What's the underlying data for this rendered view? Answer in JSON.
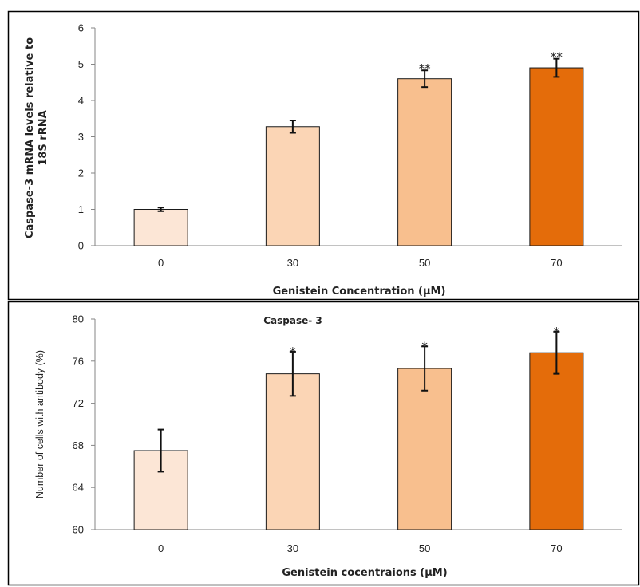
{
  "chart_data": [
    {
      "type": "bar",
      "title": "",
      "xlabel": "Genistein Concentration (µM)",
      "ylabel_lines": [
        "Caspase-3 mRNA levels relative to",
        "18S rRNA"
      ],
      "ylim": [
        0,
        6
      ],
      "yticks": [
        "0",
        "1",
        "2",
        "3",
        "4",
        "5",
        "6"
      ],
      "categories": [
        "0",
        "30",
        "50",
        "70"
      ],
      "values": [
        1.0,
        3.28,
        4.6,
        4.9
      ],
      "errors": [
        0.05,
        0.17,
        0.23,
        0.25
      ],
      "annotations": [
        "",
        "",
        "**",
        "**"
      ],
      "colors": [
        "#FCE6D6",
        "#FBD5B5",
        "#F8BF8E",
        "#E46C0A"
      ],
      "grid": false
    },
    {
      "type": "bar",
      "title": "Caspase- 3",
      "xlabel": "Genistein cocentraions (µM)",
      "ylabel": "Number of cells with antibody (%)",
      "ylim": [
        60,
        80
      ],
      "yticks": [
        "60",
        "64",
        "68",
        "72",
        "76",
        "80"
      ],
      "categories": [
        "0",
        "30",
        "50",
        "70"
      ],
      "values": [
        67.5,
        74.8,
        75.3,
        76.8
      ],
      "errors": [
        2.0,
        2.1,
        2.1,
        2.0
      ],
      "annotations": [
        "",
        "*",
        "*",
        "*"
      ],
      "colors": [
        "#FCE6D6",
        "#FBD5B5",
        "#F8BF8E",
        "#E46C0A"
      ],
      "grid": false
    }
  ]
}
